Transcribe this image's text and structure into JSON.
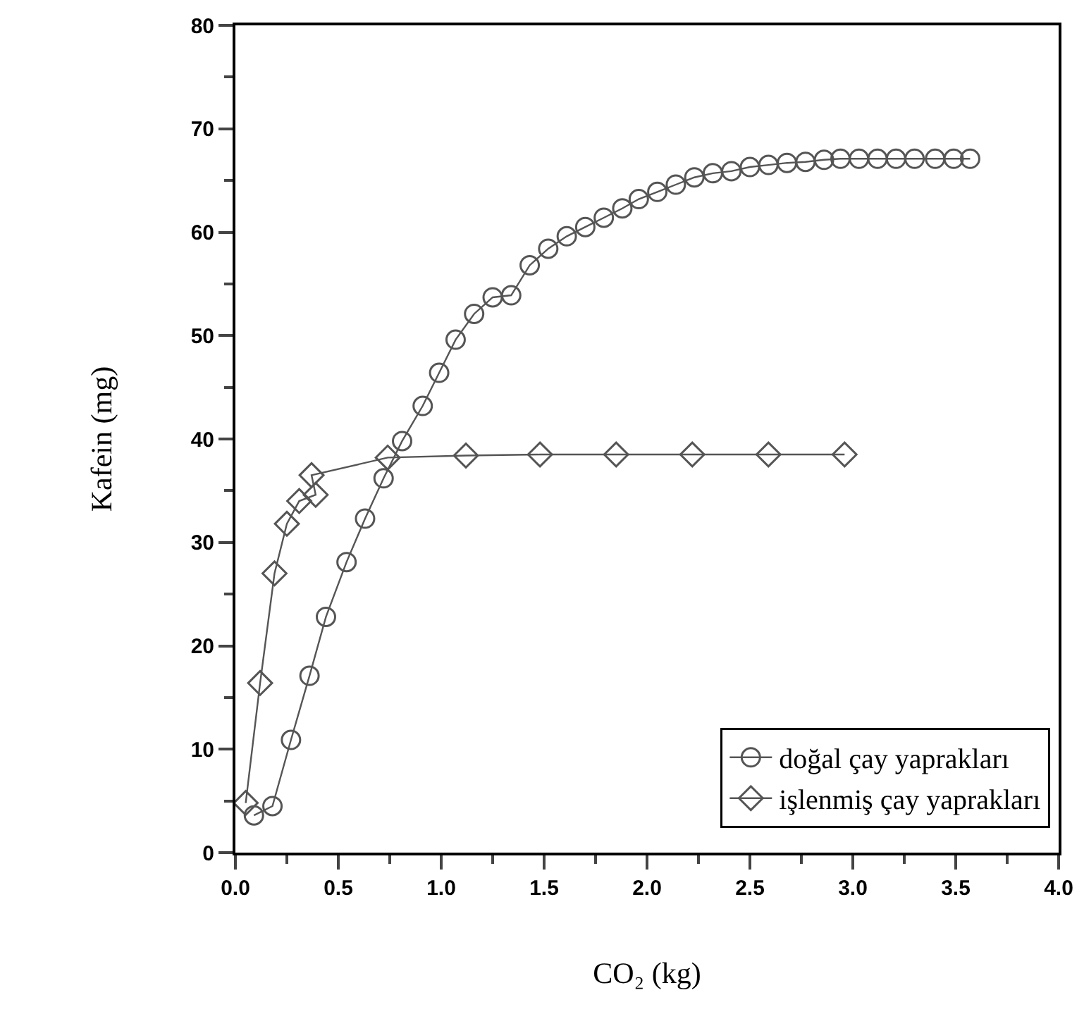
{
  "chart_data": {
    "type": "line",
    "xlabel": "CO₂ (kg)",
    "ylabel": "Kafein (mg)",
    "legend": "bottom right",
    "grid": false,
    "xlim": [
      0,
      4
    ],
    "xticks": [
      {
        "value": 0,
        "label": "0.0"
      },
      {
        "value": 0.5,
        "label": "0.5"
      },
      {
        "value": 1,
        "label": "1.0"
      },
      {
        "value": 1.5,
        "label": "1.5"
      },
      {
        "value": 2,
        "label": "2.0"
      },
      {
        "value": 2.5,
        "label": "2.5"
      },
      {
        "value": 3,
        "label": "3.0"
      },
      {
        "value": 3.5,
        "label": "3.5"
      },
      {
        "value": 4,
        "label": "4.0"
      }
    ],
    "ylim": [
      0,
      80
    ],
    "yticks": [
      0,
      10,
      20,
      30,
      40,
      50,
      60,
      70,
      80
    ],
    "series": [
      {
        "name": "doğal çay yaprakları",
        "color": "#555555",
        "marker": "circle",
        "x": [
          0.09,
          0.18,
          0.27,
          0.36,
          0.44,
          0.54,
          0.63,
          0.72,
          0.81,
          0.91,
          0.99,
          1.07,
          1.16,
          1.25,
          1.34,
          1.43,
          1.52,
          1.61,
          1.7,
          1.79,
          1.88,
          1.96,
          2.05,
          2.14,
          2.23,
          2.32,
          2.41,
          2.5,
          2.59,
          2.68,
          2.77,
          2.86,
          2.94,
          3.03,
          3.12,
          3.21,
          3.3,
          3.4,
          3.49,
          3.57
        ],
        "values": [
          3.6,
          4.5,
          10.9,
          17.1,
          22.8,
          28.1,
          32.3,
          36.2,
          39.8,
          43.2,
          46.4,
          49.6,
          52.1,
          53.7,
          53.9,
          56.8,
          58.4,
          59.6,
          60.5,
          61.4,
          62.3,
          63.2,
          63.9,
          64.6,
          65.3,
          65.7,
          65.9,
          66.3,
          66.5,
          66.7,
          66.8,
          67,
          67.1,
          67.1,
          67.1,
          67.1,
          67.1,
          67.1,
          67.1,
          67.1
        ]
      },
      {
        "name": "işlenmiş çay yaprakları",
        "color": "#555555",
        "marker": "diamond",
        "x": [
          0.05,
          0.12,
          0.19,
          0.25,
          0.31,
          0.39,
          0.37,
          0.74,
          1.12,
          1.48,
          1.85,
          2.22,
          2.59,
          2.96
        ],
        "values": [
          4.8,
          16.4,
          27,
          31.8,
          34,
          34.6,
          36.5,
          38.2,
          38.4,
          38.5,
          38.5,
          38.5,
          38.5,
          38.5
        ]
      }
    ]
  }
}
